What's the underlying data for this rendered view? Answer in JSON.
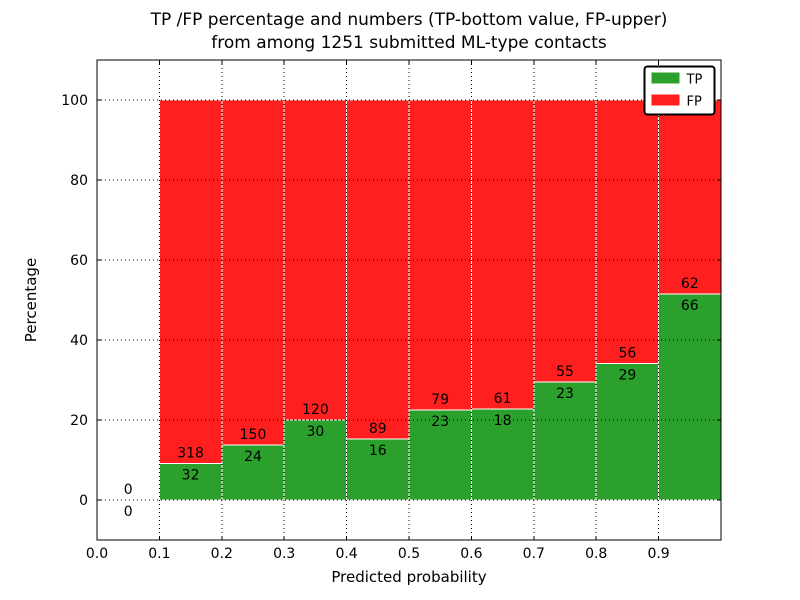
{
  "chart_data": {
    "type": "bar",
    "stacked": true,
    "title_line1": "TP /FP percentage and numbers (TP-bottom value, FP-upper)",
    "title_line2": "from among 1251 submitted ML-type contacts",
    "xlabel": "Predicted probability",
    "ylabel": "Percentage",
    "xlim": [
      0.0,
      1.0
    ],
    "ylim": [
      -10,
      110
    ],
    "xticks": [
      0.0,
      0.1,
      0.2,
      0.3,
      0.4,
      0.5,
      0.6,
      0.7,
      0.8,
      0.9
    ],
    "xtick_labels": [
      "0.0",
      "0.1",
      "0.2",
      "0.3",
      "0.4",
      "0.5",
      "0.6",
      "0.7",
      "0.8",
      "0.9"
    ],
    "yticks": [
      0,
      20,
      40,
      60,
      80,
      100
    ],
    "ytick_labels": [
      "0",
      "20",
      "40",
      "60",
      "80",
      "100"
    ],
    "grid": true,
    "grid_style": "dotted",
    "bar_width": 0.1,
    "total_contacts": 1251,
    "colors": {
      "tp": "#2ca02c",
      "fp": "#ff1f1f",
      "bar_edge": "#ffffff",
      "axis": "#000000",
      "background": "#ffffff"
    },
    "legend": {
      "position": "upper-right",
      "items": [
        {
          "label": "TP",
          "color": "#2ca02c"
        },
        {
          "label": "FP",
          "color": "#ff1f1f"
        }
      ]
    },
    "bars": [
      {
        "x_start": 0.0,
        "tp": 0,
        "fp": 0
      },
      {
        "x_start": 0.1,
        "tp": 32,
        "fp": 318
      },
      {
        "x_start": 0.2,
        "tp": 24,
        "fp": 150
      },
      {
        "x_start": 0.3,
        "tp": 30,
        "fp": 120
      },
      {
        "x_start": 0.4,
        "tp": 16,
        "fp": 89
      },
      {
        "x_start": 0.5,
        "tp": 23,
        "fp": 79
      },
      {
        "x_start": 0.6,
        "tp": 18,
        "fp": 61
      },
      {
        "x_start": 0.7,
        "tp": 23,
        "fp": 55
      },
      {
        "x_start": 0.8,
        "tp": 29,
        "fp": 56
      },
      {
        "x_start": 0.9,
        "tp": 66,
        "fp": 62
      }
    ]
  }
}
